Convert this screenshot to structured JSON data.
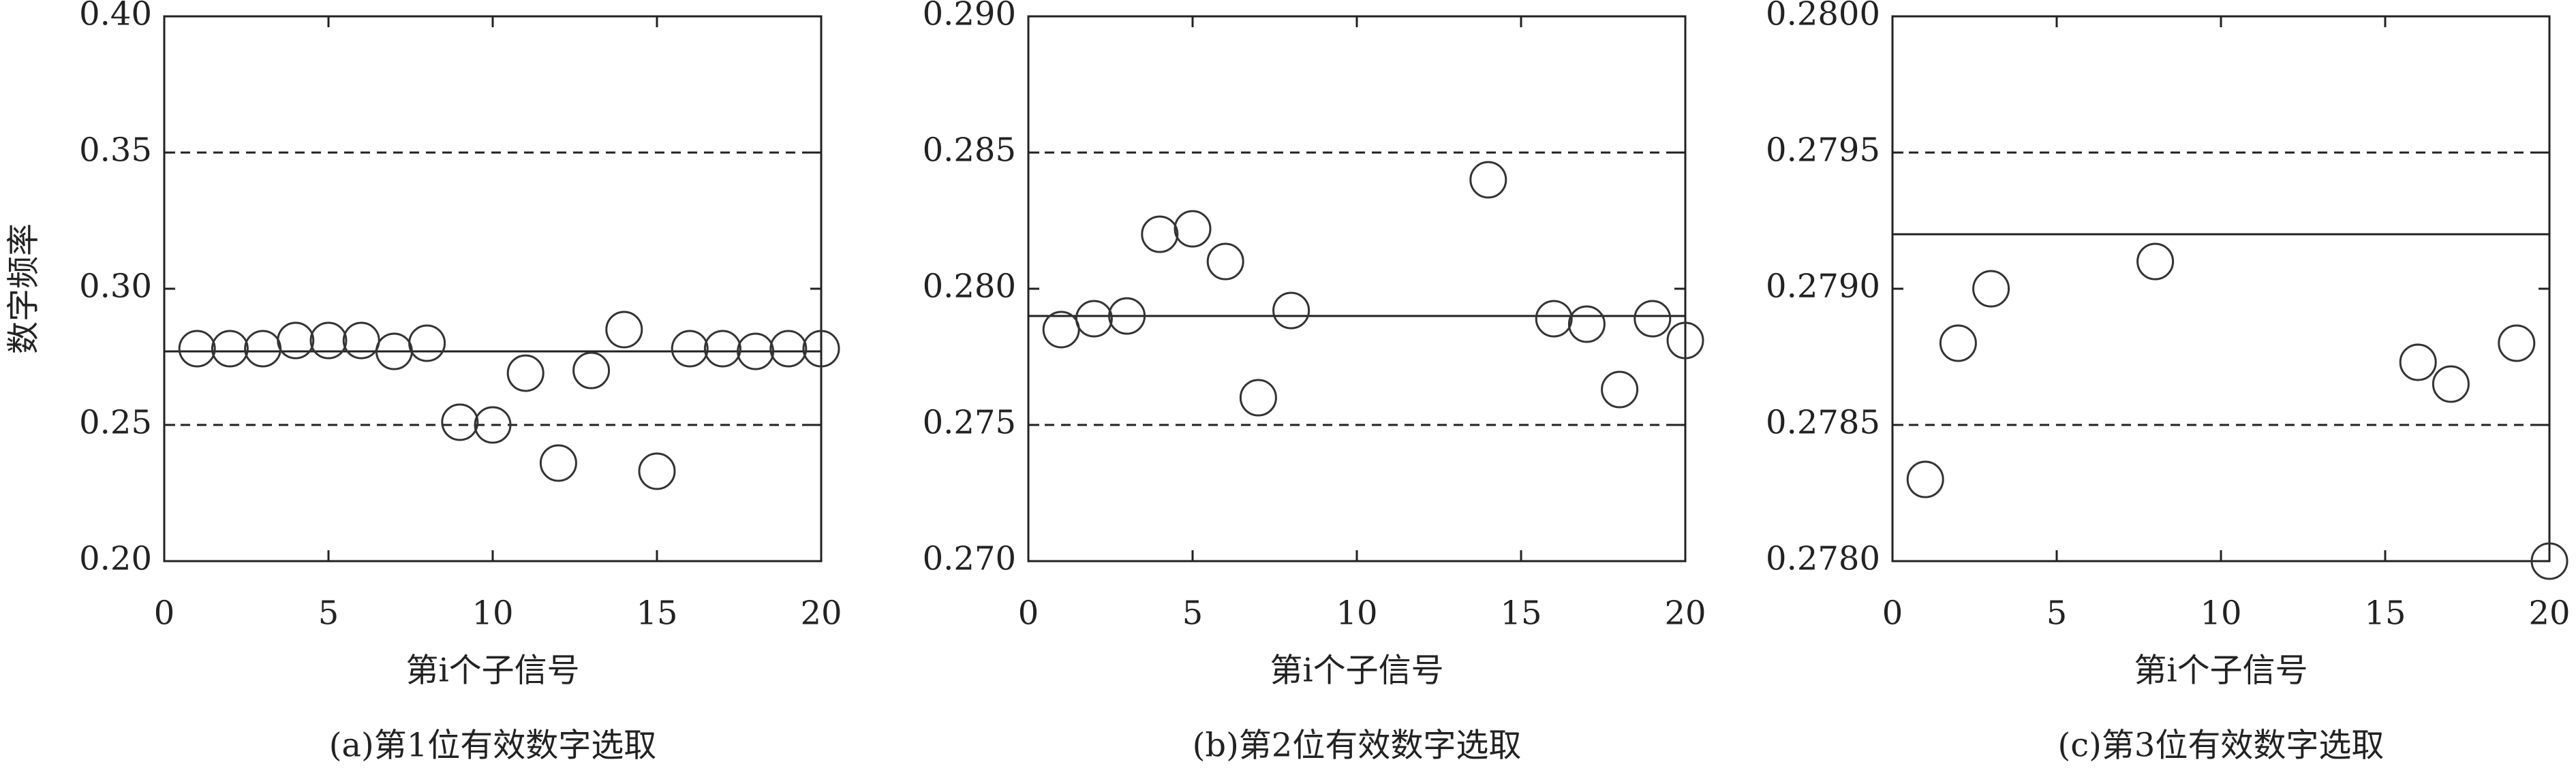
{
  "chart_data": [
    {
      "type": "scatter",
      "caption": "(a)第1位有效数字选取",
      "xlabel": "第i个子信号",
      "ylabel": "数字频率",
      "x": [
        1,
        2,
        3,
        4,
        5,
        6,
        7,
        8,
        9,
        10,
        11,
        12,
        13,
        14,
        15,
        16,
        17,
        18,
        19,
        20
      ],
      "values": [
        0.278,
        0.278,
        0.278,
        0.281,
        0.281,
        0.281,
        0.277,
        0.28,
        0.251,
        0.25,
        0.269,
        0.236,
        0.27,
        0.285,
        0.233,
        0.278,
        0.278,
        0.277,
        0.278,
        0.278
      ],
      "xlim": [
        0,
        20
      ],
      "xticks": [
        0,
        5,
        10,
        15,
        20
      ],
      "ylim": [
        0.2,
        0.4
      ],
      "yticks": [
        {
          "value": 0.2,
          "label": "0.20"
        },
        0.25,
        {
          "value": 0.3,
          "label": "0.30"
        },
        0.35,
        {
          "value": 0.4,
          "label": "0.40"
        }
      ],
      "lines": [
        {
          "value": 0.35,
          "style": "dashed"
        },
        {
          "value": 0.277,
          "style": "solid"
        },
        {
          "value": 0.25,
          "style": "dashed"
        }
      ],
      "color": "#333333"
    },
    {
      "type": "scatter",
      "caption": "(b)第2位有效数字选取",
      "xlabel": "第i个子信号",
      "x": [
        1,
        2,
        3,
        4,
        5,
        6,
        7,
        8,
        14,
        16,
        17,
        18,
        19,
        20
      ],
      "values": [
        0.2785,
        0.2789,
        0.279,
        0.282,
        0.2822,
        0.281,
        0.276,
        0.2792,
        0.284,
        0.2789,
        0.2787,
        0.2763,
        0.2789,
        0.2781
      ],
      "xlim": [
        0,
        20
      ],
      "xticks": [
        0,
        5,
        10,
        15,
        20
      ],
      "ylim": [
        0.27,
        0.29
      ],
      "yticks": [
        {
          "value": 0.27,
          "label": "0.270"
        },
        0.275,
        {
          "value": 0.28,
          "label": "0.280"
        },
        0.285,
        {
          "value": 0.29,
          "label": "0.290"
        }
      ],
      "lines": [
        {
          "value": 0.285,
          "style": "dashed"
        },
        {
          "value": 0.279,
          "style": "solid"
        },
        {
          "value": 0.275,
          "style": "dashed"
        }
      ],
      "color": "#333333"
    },
    {
      "type": "scatter",
      "caption": "(c)第3位有效数字选取",
      "xlabel": "第i个子信号",
      "x": [
        1,
        2,
        3,
        8,
        16,
        17,
        19,
        20
      ],
      "values": [
        0.2783,
        0.2788,
        0.279,
        0.2791,
        0.27873,
        0.27865,
        0.2788,
        0.278
      ],
      "xlim": [
        0,
        20
      ],
      "xticks": [
        0,
        5,
        10,
        15,
        20
      ],
      "ylim": [
        0.278,
        0.28
      ],
      "yticks": [
        {
          "value": 0.278,
          "label": "0.2780"
        },
        0.2785,
        {
          "value": 0.279,
          "label": "0.2790"
        },
        0.2795,
        {
          "value": 0.28,
          "label": "0.2800"
        }
      ],
      "lines": [
        {
          "value": 0.2795,
          "style": "dashed"
        },
        {
          "value": 0.2792,
          "style": "solid"
        },
        {
          "value": 0.2785,
          "style": "dashed"
        }
      ],
      "color": "#333333"
    }
  ]
}
